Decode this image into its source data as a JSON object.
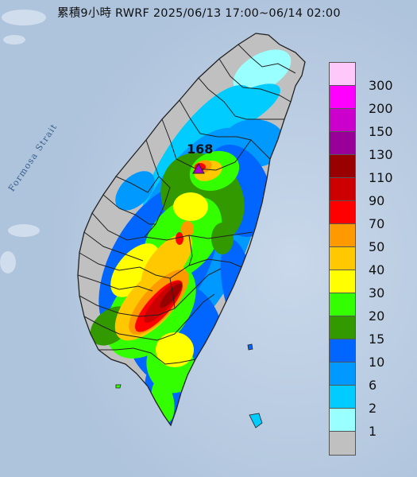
{
  "title": "累積9小時 RWRF 2025/06/13 17:00~06/14 02:00",
  "strait_label": "Formosa Strait",
  "max_value": {
    "label": "168",
    "marker_color": "#aa00cc"
  },
  "legend": {
    "levels": [
      {
        "label": "300",
        "color": "#ffc8fa"
      },
      {
        "label": "200",
        "color": "#ff00ff"
      },
      {
        "label": "150",
        "color": "#cc00cc"
      },
      {
        "label": "130",
        "color": "#990099"
      },
      {
        "label": "110",
        "color": "#990000"
      },
      {
        "label": "90",
        "color": "#cc0000"
      },
      {
        "label": "70",
        "color": "#ff0000"
      },
      {
        "label": "50",
        "color": "#ff9900"
      },
      {
        "label": "40",
        "color": "#ffc800"
      },
      {
        "label": "30",
        "color": "#ffff00"
      },
      {
        "label": "20",
        "color": "#33ff00"
      },
      {
        "label": "15",
        "color": "#339900"
      },
      {
        "label": "10",
        "color": "#0066ff"
      },
      {
        "label": "6",
        "color": "#0099ff"
      },
      {
        "label": "2",
        "color": "#00ccff"
      },
      {
        "label": "1",
        "color": "#99ffff"
      },
      {
        "label": "",
        "color": "#c0c0c0"
      }
    ]
  },
  "colors": {
    "sea": "#b9cbe0",
    "land_base": "#c0c0c0",
    "county_border": "#222222"
  }
}
